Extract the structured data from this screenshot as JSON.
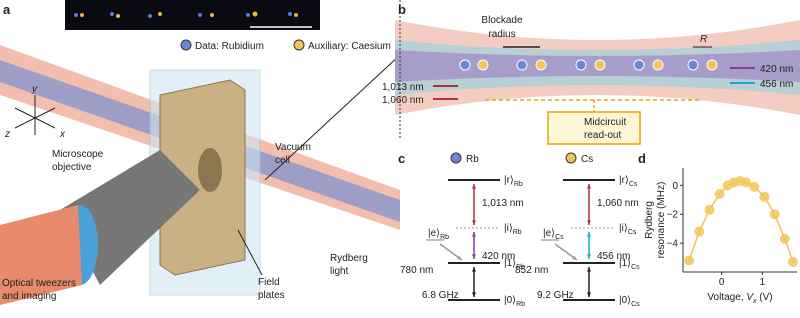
{
  "panel_a": {
    "label": "a",
    "legend": [
      "Data: Rubidium",
      "Auxiliary: Caesium"
    ],
    "axis_labels": {
      "y": "y",
      "z": "z",
      "x": "x"
    },
    "microscope_objective": [
      "Microscope",
      "objective"
    ],
    "vacuum_cell": [
      "Vacuum",
      "cell"
    ],
    "tweezers": [
      "Optical tweezers",
      "and imaging"
    ],
    "field_plates": [
      "Field",
      "plates"
    ],
    "rydberg_light": [
      "Rydberg",
      "light"
    ]
  },
  "panel_b": {
    "label": "b",
    "blockade_radius": [
      "Blockade",
      "radius"
    ],
    "spacing": "R",
    "beams_right": [
      "420 nm",
      "456 nm"
    ],
    "beams_left": [
      "1,013 nm",
      "1,060 nm"
    ],
    "readout": [
      "Midcircuit",
      "read-out"
    ]
  },
  "panel_c": {
    "label": "c",
    "species": [
      {
        "name": "Rb",
        "levels": [
          {
            "ket": "|r⟩",
            "sub": "Rb"
          },
          {
            "ket": "|i⟩",
            "sub": "Rb"
          },
          {
            "ket": "|e⟩",
            "sub": "Rb"
          },
          {
            "ket": "|1⟩",
            "sub": "Rb"
          },
          {
            "ket": "|0⟩",
            "sub": "Rb"
          }
        ],
        "upper_laser": "1,013 nm",
        "lower_laser": "420 nm",
        "d_line": "780 nm",
        "splitting": "6.8 GHz"
      },
      {
        "name": "Cs",
        "levels": [
          {
            "ket": "|r⟩",
            "sub": "Cs"
          },
          {
            "ket": "|i⟩",
            "sub": "Cs"
          },
          {
            "ket": "|e⟩",
            "sub": "Cs"
          },
          {
            "ket": "|1⟩",
            "sub": "Cs"
          },
          {
            "ket": "|0⟩",
            "sub": "Cs"
          }
        ],
        "upper_laser": "1,060 nm",
        "lower_laser": "456 nm",
        "d_line": "852 nm",
        "splitting": "9.2 GHz"
      }
    ]
  },
  "panel_d": {
    "label": "d"
  },
  "chart_data": {
    "type": "scatter",
    "color": "#f2c45a",
    "y_label": [
      "Rydberg",
      "resonance (MHz)"
    ],
    "x_label": {
      "text": "Voltage, ",
      "var": "V",
      "sub": "x",
      "unit": " (V)"
    },
    "x": [
      -0.8,
      -0.55,
      -0.3,
      -0.05,
      0.15,
      0.3,
      0.45,
      0.6,
      0.8,
      1.05,
      1.3,
      1.55,
      1.75
    ],
    "values": [
      -5.2,
      -3.2,
      -1.7,
      -0.6,
      0.0,
      0.2,
      0.3,
      0.2,
      -0.1,
      -0.8,
      -2.0,
      -3.7,
      -5.3
    ],
    "xlim": [
      -0.95,
      1.85
    ],
    "ylim": [
      -6,
      1.2
    ],
    "xticks": [
      0,
      1
    ],
    "yticks": [
      0,
      {
        "value": -2,
        "label": "−2"
      },
      {
        "value": -4,
        "label": "−4"
      }
    ]
  }
}
